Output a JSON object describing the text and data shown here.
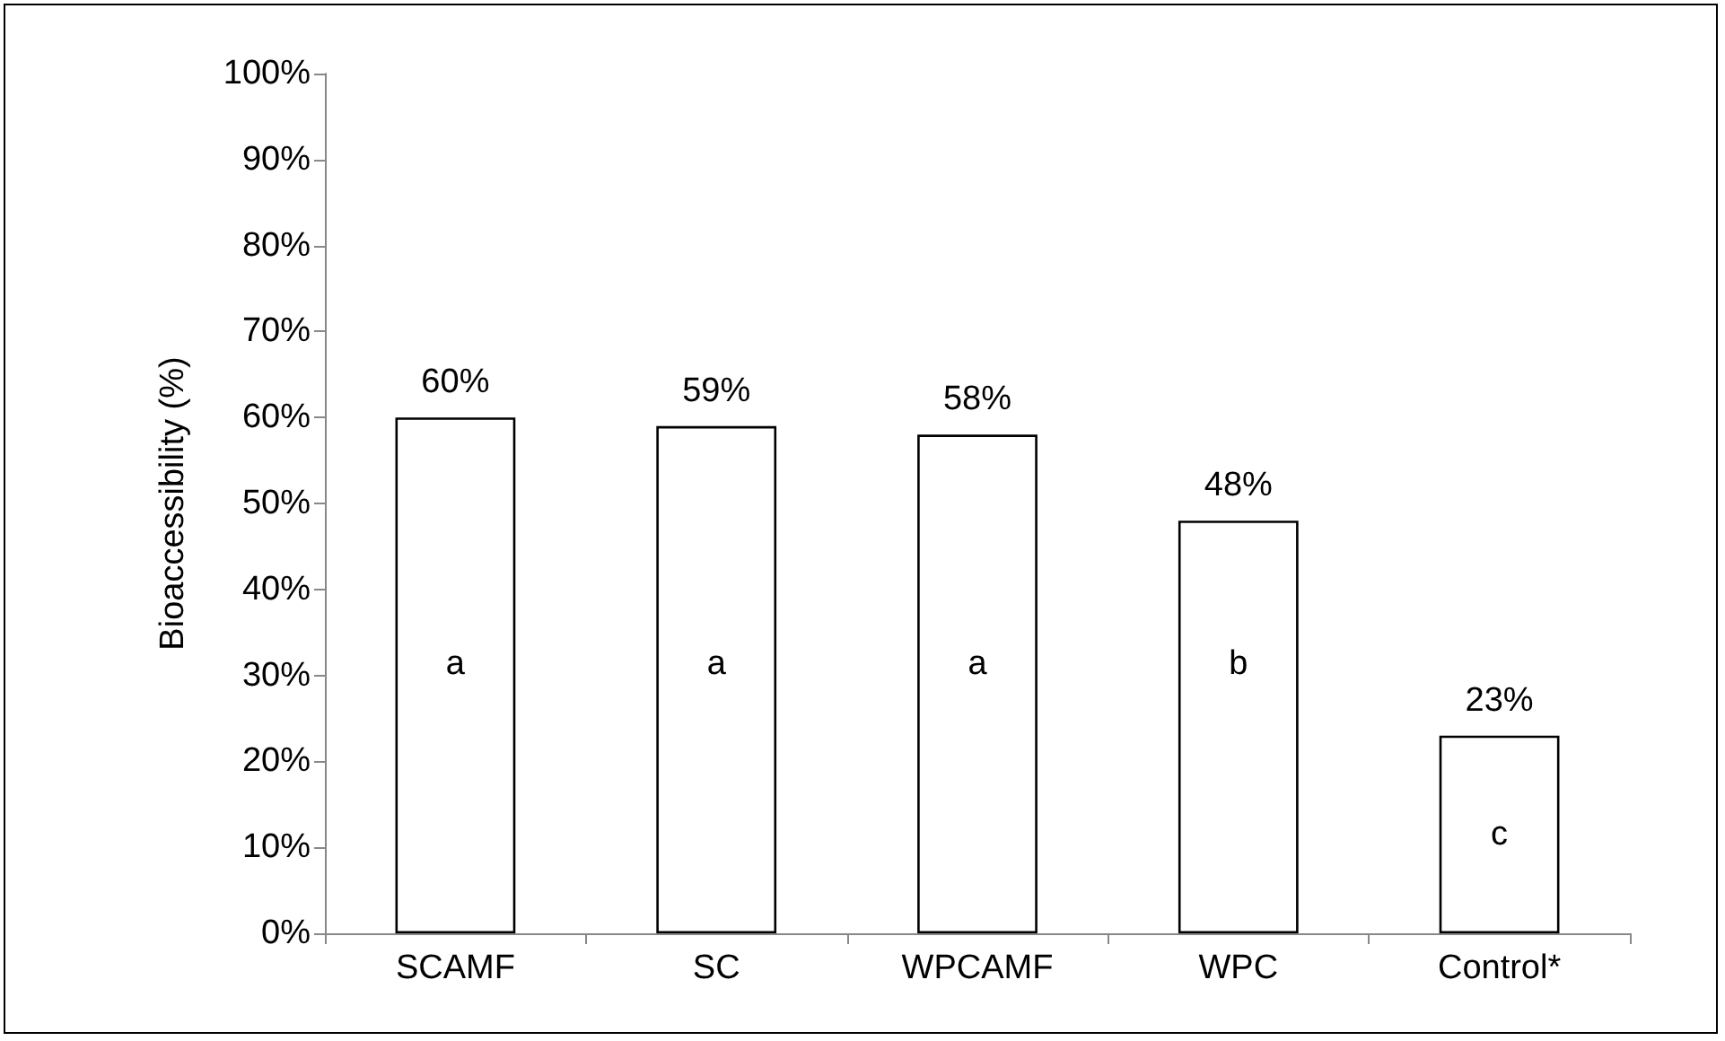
{
  "chart_data": {
    "type": "bar",
    "ylabel": "Bioaccessibility (%)",
    "categories": [
      "SCAMF",
      "SC",
      "WPCAMF",
      "WPC",
      "Control*"
    ],
    "values": [
      60,
      59,
      58,
      48,
      23
    ],
    "color": "#ffffff",
    "value_labels": [
      "60%",
      "59%",
      "58%",
      "48%",
      "23%"
    ],
    "ylim": [
      0,
      100
    ],
    "yticks": [
      {
        "value": 0,
        "label": "0%"
      },
      {
        "value": 10,
        "label": "10%"
      },
      {
        "value": 20,
        "label": "20%"
      },
      {
        "value": 30,
        "label": "30%"
      },
      {
        "value": 40,
        "label": "40%"
      },
      {
        "value": 50,
        "label": "50%"
      },
      {
        "value": 60,
        "label": "60%"
      },
      {
        "value": 70,
        "label": "70%"
      },
      {
        "value": 80,
        "label": "80%"
      },
      {
        "value": 90,
        "label": "90%"
      },
      {
        "value": 100,
        "label": "100%"
      }
    ],
    "grid": false,
    "legend": false,
    "annotations": [
      "a",
      "a",
      "a",
      "b",
      "c"
    ]
  }
}
